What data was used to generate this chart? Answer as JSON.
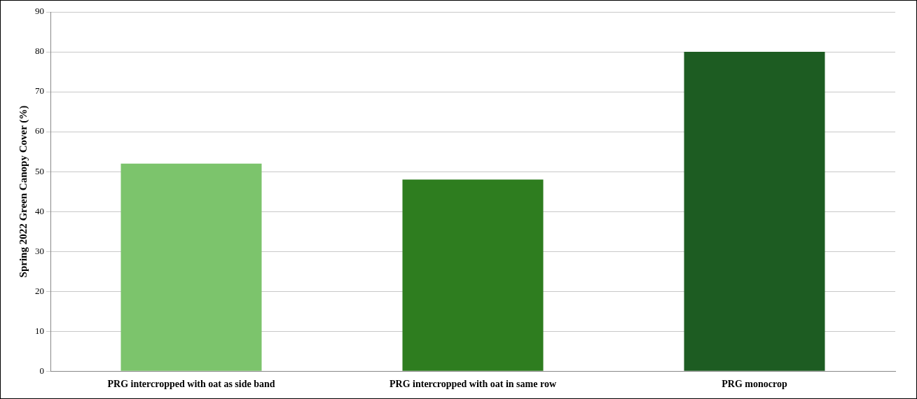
{
  "chart_data": {
    "type": "bar",
    "ylabel": "Spring 2022 Green Canopy Cover (%)",
    "categories": [
      "PRG intercropped with oat as side band",
      "PRG intercropped with oat in same row",
      "PRG monocrop"
    ],
    "values": [
      52,
      48,
      80
    ],
    "colors": [
      "#7cc46c",
      "#2e7d1f",
      "#1d5c22"
    ],
    "ylim": [
      0,
      90
    ],
    "yticks": [
      0,
      10,
      20,
      30,
      40,
      50,
      60,
      70,
      80,
      90
    ],
    "grid": "y",
    "legend": false
  }
}
